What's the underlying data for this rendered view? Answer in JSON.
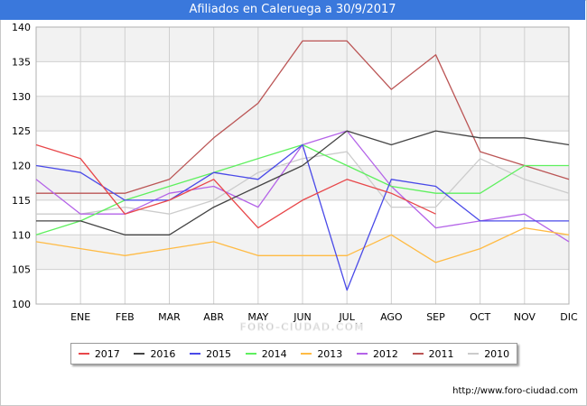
{
  "page": {
    "title": "Afiliados en Caleruega a 30/9/2017",
    "source": "http://www.foro-ciudad.com",
    "watermark": "FORO-CIUDAD.COM"
  },
  "colors": {
    "title_bg": "#3a78dc",
    "grid": "#d0d0d0",
    "band": "#f2f2f2"
  },
  "chart_data": {
    "type": "line",
    "title": "Afiliados en Caleruega a 30/9/2017",
    "categories": [
      "",
      "ENE",
      "FEB",
      "MAR",
      "ABR",
      "MAY",
      "JUN",
      "JUL",
      "AGO",
      "SEP",
      "OCT",
      "NOV",
      "DIC"
    ],
    "ylim": [
      100,
      140
    ],
    "yticks": [
      100,
      105,
      110,
      115,
      120,
      125,
      130,
      135,
      140
    ],
    "grid": true,
    "legend_position": "bottom",
    "series": [
      {
        "name": "2017",
        "color": "#e8474a",
        "values": [
          123,
          121,
          113,
          115,
          118,
          111,
          115,
          118,
          116,
          113,
          null,
          null,
          null
        ]
      },
      {
        "name": "2016",
        "color": "#444444",
        "values": [
          112,
          112,
          110,
          110,
          114,
          117,
          120,
          125,
          123,
          125,
          124,
          124,
          123
        ]
      },
      {
        "name": "2015",
        "color": "#4a4ae8",
        "values": [
          120,
          119,
          115,
          115,
          119,
          118,
          123,
          102,
          118,
          117,
          112,
          112,
          112
        ]
      },
      {
        "name": "2014",
        "color": "#5ef05e",
        "values": [
          110,
          112,
          115,
          117,
          119,
          121,
          123,
          120,
          117,
          116,
          116,
          120,
          120
        ]
      },
      {
        "name": "2013",
        "color": "#ffbb44",
        "values": [
          109,
          108,
          107,
          108,
          109,
          107,
          107,
          107,
          110,
          106,
          108,
          111,
          110
        ]
      },
      {
        "name": "2012",
        "color": "#b463e8",
        "values": [
          118,
          113,
          113,
          116,
          117,
          114,
          123,
          125,
          117,
          111,
          112,
          113,
          109
        ]
      },
      {
        "name": "2011",
        "color": "#bb5555",
        "values": [
          116,
          116,
          116,
          118,
          124,
          129,
          138,
          138,
          131,
          136,
          122,
          120,
          118
        ]
      },
      {
        "name": "2010",
        "color": "#cccccc",
        "values": [
          113,
          113,
          114,
          113,
          115,
          119,
          121,
          122,
          114,
          114,
          121,
          118,
          116
        ]
      }
    ]
  }
}
